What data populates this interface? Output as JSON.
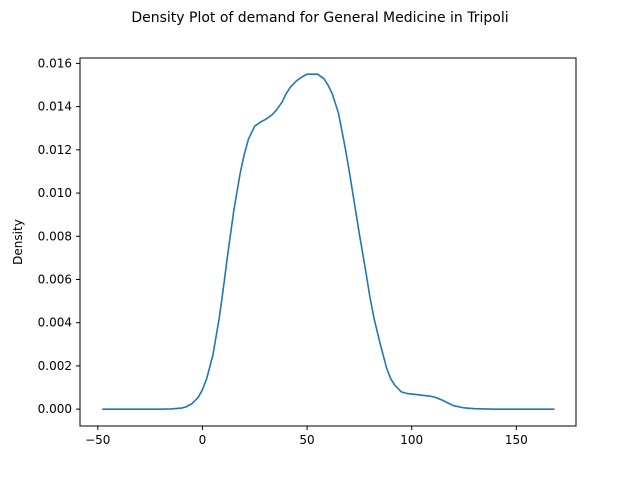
{
  "chart_data": {
    "type": "area",
    "title": "Density Plot of demand for General Medicine in Tripoli",
    "xlabel": "",
    "ylabel": "Density",
    "xlim": [
      -58.5,
      178.5
    ],
    "ylim": [
      -0.00078,
      0.01625
    ],
    "x_ticks": [
      -50,
      0,
      50,
      100,
      150
    ],
    "x_tick_labels": [
      "−50",
      "0",
      "50",
      "100",
      "150"
    ],
    "y_ticks": [
      0.0,
      0.002,
      0.004,
      0.006,
      0.008,
      0.01,
      0.012,
      0.014,
      0.016
    ],
    "y_tick_labels": [
      "0.000",
      "0.002",
      "0.004",
      "0.006",
      "0.008",
      "0.010",
      "0.012",
      "0.014",
      "0.016"
    ],
    "grid": false,
    "legend": "none",
    "series": [
      {
        "color": "#1f77b4",
        "x": [
          -47.6,
          -40,
          -30,
          -20,
          -15,
          -10,
          -8,
          -5,
          -2,
          0,
          2,
          5,
          8,
          10,
          12,
          15,
          18,
          20,
          22,
          25,
          28,
          30,
          33,
          35,
          38,
          40,
          42,
          45,
          48,
          50,
          52,
          55,
          58,
          60,
          62,
          65,
          68,
          70,
          72,
          75,
          78,
          80,
          82,
          85,
          88,
          90,
          92,
          95,
          98,
          100,
          103,
          105,
          108,
          110,
          112,
          115,
          118,
          120,
          125,
          130,
          140,
          150,
          160,
          168
        ],
        "y": [
          0.0,
          0.0,
          0.0,
          0.0,
          1e-05,
          5e-05,
          0.0001,
          0.00025,
          0.00055,
          0.0009,
          0.0014,
          0.0025,
          0.0042,
          0.0056,
          0.0071,
          0.0092,
          0.0109,
          0.0118,
          0.0125,
          0.0131,
          0.0133,
          0.0134,
          0.0136,
          0.0138,
          0.0142,
          0.0146,
          0.0149,
          0.0152,
          0.0154,
          0.0155,
          0.0155,
          0.0155,
          0.0153,
          0.015,
          0.0146,
          0.0137,
          0.0122,
          0.0111,
          0.0099,
          0.0081,
          0.0064,
          0.0052,
          0.0042,
          0.003,
          0.0019,
          0.0014,
          0.0011,
          0.0008,
          0.00072,
          0.0007,
          0.00067,
          0.00064,
          0.00061,
          0.00058,
          0.00052,
          0.0004,
          0.00025,
          0.00016,
          6e-05,
          2e-05,
          0.0,
          0.0,
          0.0,
          0.0
        ]
      }
    ]
  }
}
